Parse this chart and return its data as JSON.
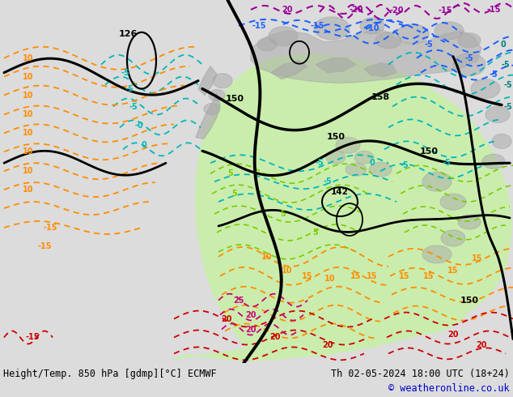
{
  "title_left": "Height/Temp. 850 hPa [gdmp][°C] ECMWF",
  "title_right": "Th 02-05-2024 18:00 UTC (18+24)",
  "copyright": "© weatheronline.co.uk",
  "bg_color": "#dcdcdc",
  "fig_width": 6.34,
  "fig_height": 4.9,
  "dpi": 100,
  "bottom_bar_color": "#f0f0f0",
  "title_fontsize": 8.5,
  "copyright_color": "#0000cc",
  "title_color": "#000000",
  "land_green": "#c8f0a8",
  "land_gray": "#a8a8a8",
  "black": "#000000",
  "cyan": "#00b8b8",
  "orange": "#ff8c00",
  "blue": "#1a5fff",
  "purple": "#990099",
  "lime": "#7acc00",
  "red": "#cc0000",
  "magenta": "#cc0077",
  "teal": "#008080",
  "darkblue": "#0000cc"
}
